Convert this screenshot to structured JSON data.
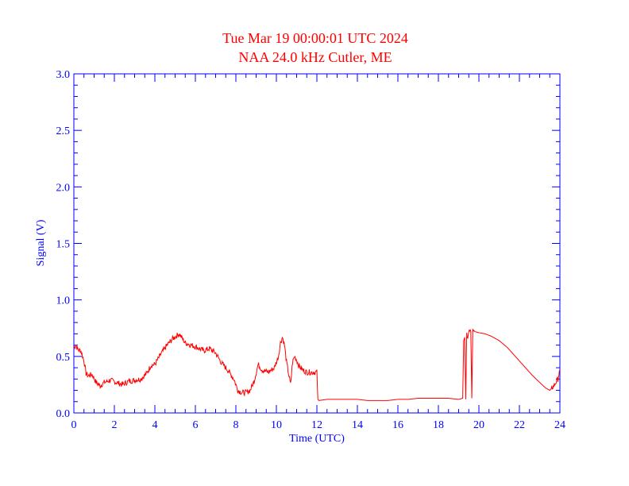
{
  "chart_data": {
    "type": "line",
    "title": "Tue Mar 19 00:00:01 UTC 2024",
    "subtitle": "NAA 24.0 kHz Cutler, ME",
    "xlabel": "Time (UTC)",
    "ylabel": "Signal (V)",
    "xlim": [
      0,
      24
    ],
    "ylim": [
      0,
      3.0
    ],
    "x_ticks": [
      0,
      2,
      4,
      6,
      8,
      10,
      12,
      14,
      16,
      18,
      20,
      22,
      24
    ],
    "x_tick_labels": [
      "0",
      "2",
      "4",
      "6",
      "8",
      "10",
      "12",
      "14",
      "16",
      "18",
      "20",
      "22",
      "24"
    ],
    "y_ticks": [
      0.0,
      0.5,
      1.0,
      1.5,
      2.0,
      2.5,
      3.0
    ],
    "y_tick_labels": [
      "0.0",
      "0.5",
      "1.0",
      "1.5",
      "2.0",
      "2.5",
      "3.0"
    ],
    "x_minor_step": 0.5,
    "y_minor_step": 0.1,
    "grid": false,
    "series_color": "#ff0000",
    "axis_color": "#0000ff",
    "title_color": "#ff0000",
    "series": [
      {
        "x": [
          0,
          0.1,
          0.2,
          0.35,
          0.5,
          0.6,
          0.7,
          0.9,
          1.1,
          1.3,
          1.5,
          1.8,
          2.1,
          2.4,
          2.7,
          3.0,
          3.3,
          3.6,
          3.8,
          4.0,
          4.3,
          4.6,
          4.9,
          5.2,
          5.5,
          5.8,
          6.1,
          6.4,
          6.7,
          7.0,
          7.3,
          7.6,
          7.9,
          8.1,
          8.3,
          8.5,
          8.7,
          8.9,
          9.1,
          9.3,
          9.6,
          9.9,
          10.1,
          10.2,
          10.3,
          10.4,
          10.5,
          10.6,
          10.7,
          10.8,
          10.9,
          11.0,
          11.1,
          11.3,
          11.5,
          11.8,
          12.0,
          12.05,
          12.1,
          12.5,
          13.0,
          13.5,
          14.0,
          14.5,
          15.0,
          15.5,
          16.0,
          16.5,
          17.0,
          17.5,
          18.0,
          18.5,
          19.0,
          19.2,
          19.25,
          19.3,
          19.35,
          19.4,
          19.45,
          19.5,
          19.6,
          19.65,
          19.7,
          19.75,
          19.8,
          20.0,
          20.3,
          20.6,
          21.0,
          21.4,
          21.8,
          22.2,
          22.6,
          23.0,
          23.3,
          23.5,
          23.7,
          23.9,
          24.0
        ],
        "values": [
          0.58,
          0.6,
          0.56,
          0.55,
          0.46,
          0.35,
          0.33,
          0.34,
          0.27,
          0.24,
          0.27,
          0.29,
          0.27,
          0.25,
          0.28,
          0.29,
          0.3,
          0.35,
          0.42,
          0.43,
          0.52,
          0.6,
          0.66,
          0.7,
          0.62,
          0.6,
          0.58,
          0.55,
          0.57,
          0.53,
          0.44,
          0.38,
          0.3,
          0.2,
          0.18,
          0.18,
          0.2,
          0.28,
          0.43,
          0.38,
          0.36,
          0.4,
          0.5,
          0.62,
          0.67,
          0.6,
          0.45,
          0.35,
          0.25,
          0.45,
          0.5,
          0.47,
          0.42,
          0.38,
          0.36,
          0.36,
          0.36,
          0.12,
          0.11,
          0.12,
          0.12,
          0.12,
          0.12,
          0.11,
          0.11,
          0.11,
          0.12,
          0.12,
          0.13,
          0.13,
          0.13,
          0.13,
          0.12,
          0.13,
          0.62,
          0.67,
          0.12,
          0.7,
          0.68,
          0.72,
          0.72,
          0.13,
          0.72,
          0.73,
          0.72,
          0.71,
          0.7,
          0.68,
          0.64,
          0.58,
          0.5,
          0.42,
          0.34,
          0.27,
          0.22,
          0.2,
          0.24,
          0.3,
          0.38
        ]
      }
    ]
  }
}
